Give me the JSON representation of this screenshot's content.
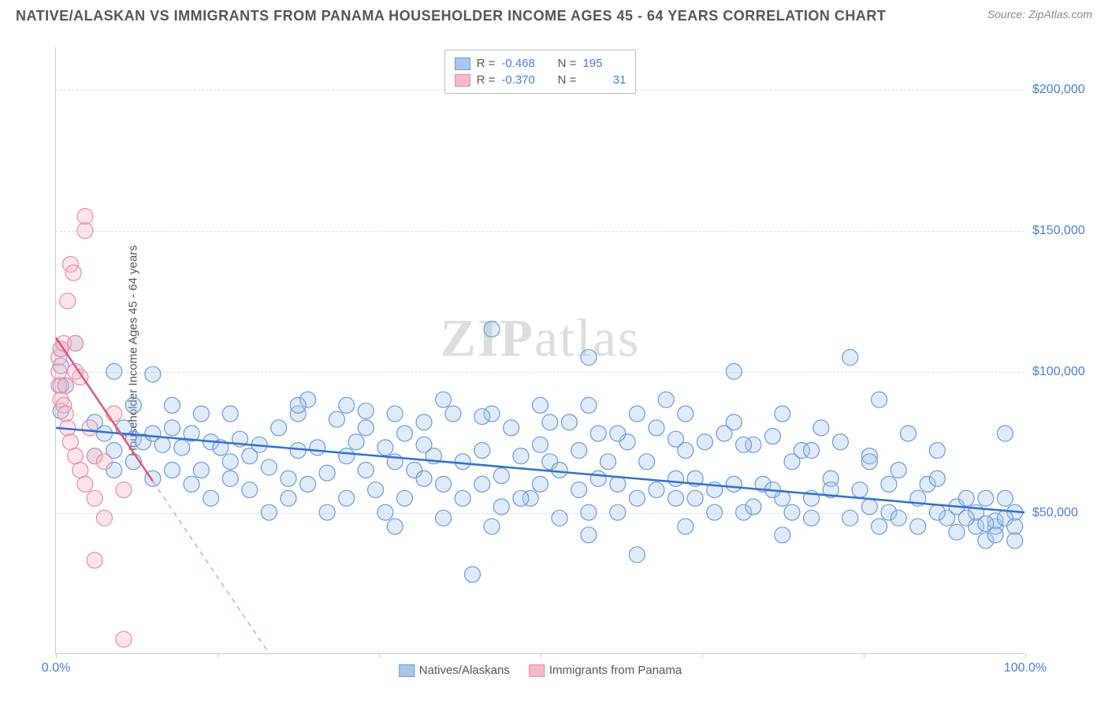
{
  "title": "NATIVE/ALASKAN VS IMMIGRANTS FROM PANAMA HOUSEHOLDER INCOME AGES 45 - 64 YEARS CORRELATION CHART",
  "source": "Source: ZipAtlas.com",
  "watermark": "ZIPatlas",
  "y_label": "Householder Income Ages 45 - 64 years",
  "chart": {
    "type": "scatter-correlation",
    "background_color": "#ffffff",
    "grid_color": "#dddddd",
    "axis_color": "#cccccc",
    "title_color": "#555555",
    "title_fontsize": 18,
    "label_fontsize": 15,
    "tick_label_color": "#4a7ec9",
    "tick_label_fontsize": 16,
    "xlim": [
      0,
      100
    ],
    "ylim": [
      0,
      215000
    ],
    "y_ticks": [
      50000,
      100000,
      150000,
      200000
    ],
    "y_tick_labels": [
      "$50,000",
      "$100,000",
      "$150,000",
      "$200,000"
    ],
    "x_tick_positions": [
      0,
      16.67,
      33.33,
      50,
      66.67,
      83.33,
      100
    ],
    "x_tick_labels": {
      "0": "0.0%",
      "100": "100.0%"
    },
    "marker_radius": 10,
    "marker_stroke_width": 1.2,
    "fill_opacity": 0.35,
    "trend_line_width_solid": 2.5,
    "trend_line_width_dash": 1.5
  },
  "series": [
    {
      "name": "Natives/Alaskans",
      "color_fill": "#a8c6ec",
      "color_stroke": "#6699dd",
      "trend_color": "#2e6fd6",
      "R": "-0.468",
      "N": "195",
      "trend": {
        "x1": 0,
        "y1": 80000,
        "x2": 100,
        "y2": 50000
      },
      "trend_dash": false,
      "points": [
        [
          0.5,
          108000
        ],
        [
          0.5,
          102000
        ],
        [
          1,
          95000
        ],
        [
          6,
          100000
        ],
        [
          10,
          99000
        ],
        [
          2,
          110000
        ],
        [
          4,
          82000
        ],
        [
          5,
          78000
        ],
        [
          6,
          72000
        ],
        [
          7,
          80000
        ],
        [
          8,
          76000
        ],
        [
          9,
          75000
        ],
        [
          10,
          78000
        ],
        [
          11,
          74000
        ],
        [
          12,
          80000
        ],
        [
          13,
          73000
        ],
        [
          14,
          78000
        ],
        [
          15,
          65000
        ],
        [
          16,
          75000
        ],
        [
          17,
          73000
        ],
        [
          18,
          68000
        ],
        [
          19,
          76000
        ],
        [
          20,
          70000
        ],
        [
          21,
          74000
        ],
        [
          22,
          66000
        ],
        [
          23,
          80000
        ],
        [
          24,
          62000
        ],
        [
          25,
          72000
        ],
        [
          26,
          90000
        ],
        [
          27,
          73000
        ],
        [
          28,
          64000
        ],
        [
          29,
          83000
        ],
        [
          30,
          70000
        ],
        [
          31,
          75000
        ],
        [
          32,
          80000
        ],
        [
          33,
          58000
        ],
        [
          34,
          73000
        ],
        [
          35,
          68000
        ],
        [
          36,
          78000
        ],
        [
          37,
          65000
        ],
        [
          38,
          74000
        ],
        [
          39,
          70000
        ],
        [
          40,
          60000
        ],
        [
          41,
          85000
        ],
        [
          42,
          68000
        ],
        [
          43,
          28000
        ],
        [
          44,
          72000
        ],
        [
          45,
          115000
        ],
        [
          46,
          63000
        ],
        [
          47,
          80000
        ],
        [
          48,
          70000
        ],
        [
          49,
          55000
        ],
        [
          50,
          74000
        ],
        [
          51,
          68000
        ],
        [
          52,
          65000
        ],
        [
          53,
          82000
        ],
        [
          54,
          72000
        ],
        [
          55,
          50000
        ],
        [
          56,
          78000
        ],
        [
          57,
          68000
        ],
        [
          58,
          60000
        ],
        [
          59,
          75000
        ],
        [
          60,
          35000
        ],
        [
          61,
          68000
        ],
        [
          62,
          80000
        ],
        [
          63,
          90000
        ],
        [
          64,
          55000
        ],
        [
          65,
          72000
        ],
        [
          66,
          62000
        ],
        [
          67,
          75000
        ],
        [
          68,
          58000
        ],
        [
          69,
          78000
        ],
        [
          70,
          100000
        ],
        [
          71,
          50000
        ],
        [
          72,
          74000
        ],
        [
          73,
          60000
        ],
        [
          74,
          77000
        ],
        [
          75,
          55000
        ],
        [
          76,
          68000
        ],
        [
          77,
          72000
        ],
        [
          78,
          48000
        ],
        [
          79,
          80000
        ],
        [
          80,
          62000
        ],
        [
          81,
          75000
        ],
        [
          82,
          105000
        ],
        [
          83,
          58000
        ],
        [
          84,
          70000
        ],
        [
          85,
          90000
        ],
        [
          86,
          50000
        ],
        [
          87,
          65000
        ],
        [
          88,
          78000
        ],
        [
          89,
          45000
        ],
        [
          90,
          60000
        ],
        [
          91,
          72000
        ],
        [
          92,
          48000
        ],
        [
          93,
          52000
        ],
        [
          94,
          55000
        ],
        [
          95,
          50000
        ],
        [
          96,
          40000
        ],
        [
          97,
          45000
        ],
        [
          98,
          78000
        ],
        [
          99,
          50000
        ],
        [
          95,
          45000
        ],
        [
          96,
          55000
        ],
        [
          97,
          47000
        ],
        [
          93,
          43000
        ],
        [
          91,
          50000
        ],
        [
          89,
          55000
        ],
        [
          87,
          48000
        ],
        [
          86,
          60000
        ],
        [
          84,
          52000
        ],
        [
          82,
          48000
        ],
        [
          80,
          58000
        ],
        [
          78,
          55000
        ],
        [
          76,
          50000
        ],
        [
          74,
          58000
        ],
        [
          72,
          52000
        ],
        [
          70,
          60000
        ],
        [
          68,
          50000
        ],
        [
          66,
          55000
        ],
        [
          64,
          62000
        ],
        [
          62,
          58000
        ],
        [
          60,
          55000
        ],
        [
          58,
          50000
        ],
        [
          56,
          62000
        ],
        [
          54,
          58000
        ],
        [
          52,
          48000
        ],
        [
          50,
          60000
        ],
        [
          48,
          55000
        ],
        [
          46,
          52000
        ],
        [
          44,
          60000
        ],
        [
          42,
          55000
        ],
        [
          40,
          48000
        ],
        [
          38,
          62000
        ],
        [
          36,
          55000
        ],
        [
          34,
          50000
        ],
        [
          32,
          65000
        ],
        [
          30,
          55000
        ],
        [
          28,
          50000
        ],
        [
          26,
          60000
        ],
        [
          24,
          55000
        ],
        [
          22,
          50000
        ],
        [
          20,
          58000
        ],
        [
          18,
          62000
        ],
        [
          16,
          55000
        ],
        [
          14,
          60000
        ],
        [
          12,
          65000
        ],
        [
          10,
          62000
        ],
        [
          8,
          68000
        ],
        [
          6,
          65000
        ],
        [
          4,
          70000
        ],
        [
          25,
          85000
        ],
        [
          35,
          85000
        ],
        [
          45,
          85000
        ],
        [
          55,
          88000
        ],
        [
          65,
          85000
        ],
        [
          75,
          85000
        ],
        [
          85,
          45000
        ],
        [
          15,
          85000
        ],
        [
          30,
          88000
        ],
        [
          40,
          90000
        ],
        [
          50,
          88000
        ],
        [
          60,
          85000
        ],
        [
          70,
          82000
        ],
        [
          55,
          105000
        ],
        [
          8,
          88000
        ],
        [
          12,
          88000
        ],
        [
          18,
          85000
        ],
        [
          25,
          88000
        ],
        [
          32,
          86000
        ],
        [
          38,
          82000
        ],
        [
          44,
          84000
        ],
        [
          51,
          82000
        ],
        [
          58,
          78000
        ],
        [
          64,
          76000
        ],
        [
          71,
          74000
        ],
        [
          78,
          72000
        ],
        [
          84,
          68000
        ],
        [
          91,
          62000
        ],
        [
          94,
          48000
        ],
        [
          96,
          46000
        ],
        [
          97,
          42000
        ],
        [
          98,
          48000
        ],
        [
          99,
          45000
        ],
        [
          99,
          40000
        ],
        [
          98,
          55000
        ],
        [
          45,
          45000
        ],
        [
          55,
          42000
        ],
        [
          65,
          45000
        ],
        [
          75,
          42000
        ],
        [
          35,
          45000
        ],
        [
          0.5,
          95000
        ],
        [
          0.5,
          86000
        ]
      ]
    },
    {
      "name": "Immigrants from Panama",
      "color_fill": "#f5b8c8",
      "color_stroke": "#e88aa5",
      "trend_color": "#e3527c",
      "R": "-0.370",
      "N": "31",
      "trend": {
        "x1": 0,
        "y1": 112000,
        "x2": 22,
        "y2": 0
      },
      "trend_dash": true,
      "trend_solid_end_x": 10,
      "points": [
        [
          0.3,
          95000
        ],
        [
          0.3,
          100000
        ],
        [
          0.3,
          105000
        ],
        [
          0.5,
          108000
        ],
        [
          0.5,
          90000
        ],
        [
          0.8,
          110000
        ],
        [
          0.8,
          88000
        ],
        [
          1,
          95000
        ],
        [
          1,
          85000
        ],
        [
          1.2,
          125000
        ],
        [
          1.2,
          80000
        ],
        [
          1.5,
          138000
        ],
        [
          1.5,
          75000
        ],
        [
          1.8,
          135000
        ],
        [
          2,
          110000
        ],
        [
          2,
          70000
        ],
        [
          2.5,
          98000
        ],
        [
          2.5,
          65000
        ],
        [
          3,
          155000
        ],
        [
          3,
          150000
        ],
        [
          3,
          60000
        ],
        [
          3.5,
          80000
        ],
        [
          4,
          70000
        ],
        [
          4,
          55000
        ],
        [
          4,
          33000
        ],
        [
          5,
          68000
        ],
        [
          5,
          48000
        ],
        [
          6,
          85000
        ],
        [
          7,
          58000
        ],
        [
          7,
          5000
        ],
        [
          2,
          100000
        ]
      ]
    }
  ],
  "legend": {
    "series1": "Natives/Alaskans",
    "series2": "Immigrants from Panama"
  }
}
